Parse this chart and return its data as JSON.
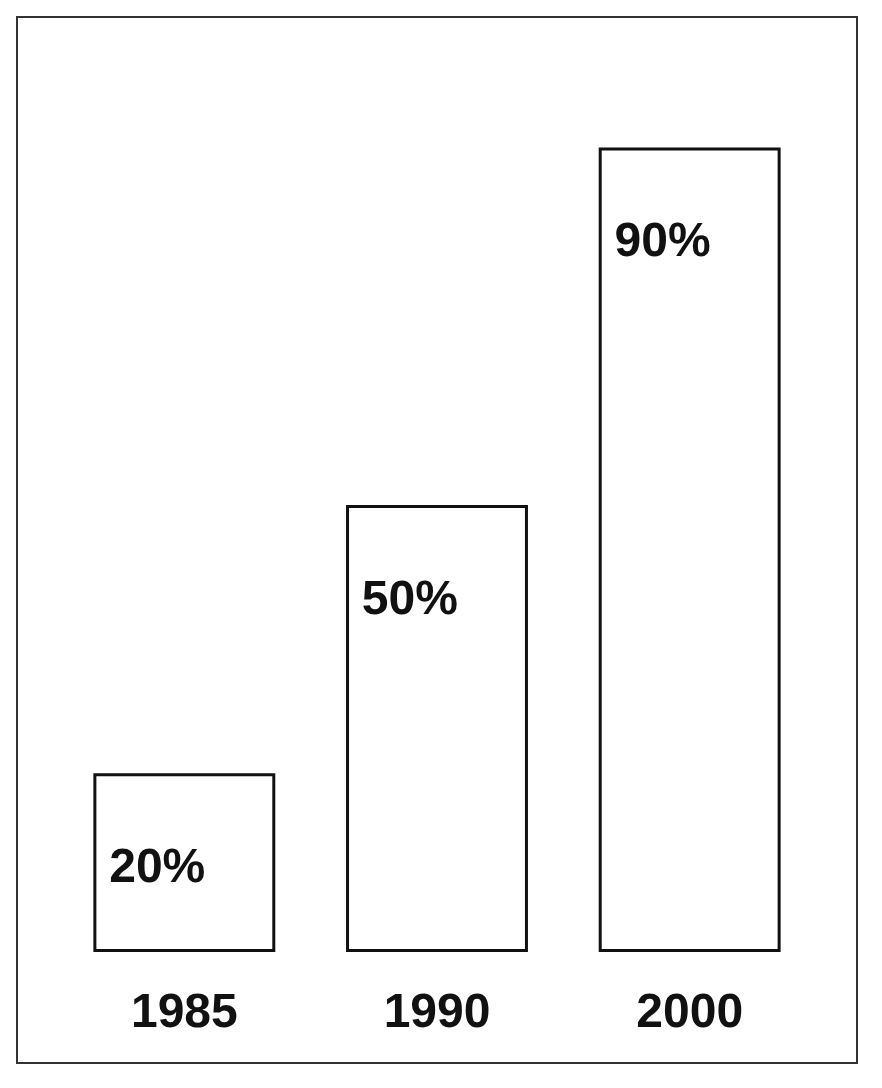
{
  "chart_data": {
    "type": "bar",
    "categories": [
      "1985",
      "1990",
      "2000"
    ],
    "values": [
      20,
      50,
      90
    ],
    "color": "#ffffff",
    "data_labels": true,
    "value_labels": [
      "20%",
      "50%",
      "90%"
    ]
  }
}
